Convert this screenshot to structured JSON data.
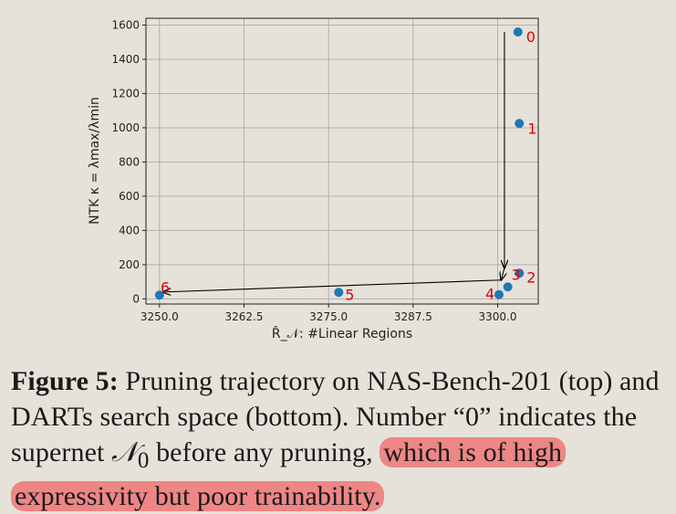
{
  "chart_data": {
    "type": "scatter",
    "xlabel": "R̂_𝒩: #Linear Regions",
    "ylabel": "NTK κ = λmax/λmin",
    "xlim": [
      3248,
      3306
    ],
    "ylim": [
      -30,
      1640
    ],
    "x_ticks": [
      3250.0,
      3262.5,
      3275.0,
      3287.5,
      3300.0
    ],
    "x_tick_labels": [
      "3250.0",
      "3262.5",
      "3275.0",
      "3287.5",
      "3300.0"
    ],
    "y_ticks": [
      0,
      200,
      400,
      600,
      800,
      1000,
      1200,
      1400,
      1600
    ],
    "y_tick_labels": [
      "0",
      "200",
      "400",
      "600",
      "800",
      "1000",
      "1200",
      "1400",
      "1600"
    ],
    "grid": true,
    "point_color": "#1f77b4",
    "label_color": "#e00000",
    "points": [
      {
        "label": "0",
        "x": 3303.0,
        "y": 1560
      },
      {
        "label": "1",
        "x": 3303.2,
        "y": 1025
      },
      {
        "label": "2",
        "x": 3303.2,
        "y": 150
      },
      {
        "label": "3",
        "x": 3301.5,
        "y": 70
      },
      {
        "label": "4",
        "x": 3300.2,
        "y": 25
      },
      {
        "label": "5",
        "x": 3276.5,
        "y": 38
      },
      {
        "label": "6",
        "x": 3250.0,
        "y": 22
      }
    ],
    "arrows": [
      {
        "from": [
          3301.0,
          1560
        ],
        "to": [
          3301.0,
          180
        ]
      },
      {
        "from": [
          3301.0,
          180
        ],
        "to": [
          3300.5,
          110
        ]
      },
      {
        "from": [
          3300.5,
          110
        ],
        "to": [
          3250.5,
          40
        ]
      }
    ]
  },
  "caption": {
    "figure_label": "Figure 5:",
    "text_part1": " Pruning trajectory on NAS-Bench-201 (top) and DARTs search space (bottom). Number “0” indicates the supernet ",
    "supernet_symbol": "𝒩",
    "supernet_subscript": "0",
    "text_part2": " before any pruning, ",
    "highlighted_text": "which is of high expressivity but poor trainability."
  }
}
